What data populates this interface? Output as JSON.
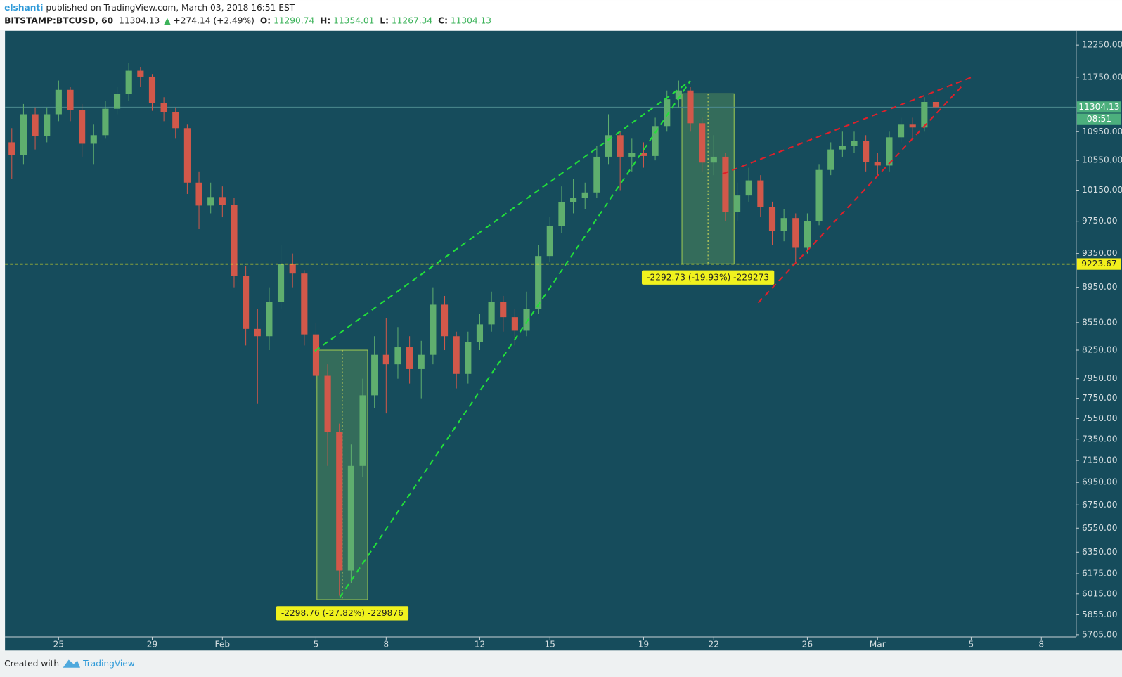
{
  "header": {
    "author": "elshanti",
    "published": "published on TradingView.com, March 03, 2018 16:51 EST",
    "symbol": "BITSTAMP:BTCUSD, 60",
    "last": "11304.13",
    "arrow": "▲",
    "change": "+274.14 (+2.49%)",
    "o_label": "O:",
    "o": "11290.74",
    "h_label": "H:",
    "h": "11354.01",
    "l_label": "L:",
    "l": "11267.34",
    "c_label": "C:",
    "c": "11304.13"
  },
  "footer": {
    "created": "Created with",
    "brand": "TradingView"
  },
  "chart_data": {
    "type": "candlestick",
    "log_scale": true,
    "up_color": "#5fae6e",
    "down_color": "#d2584a",
    "x": [
      -2,
      -1.5,
      -1,
      -0.5,
      0,
      0.5,
      1,
      1.5,
      2,
      2.5,
      3,
      3.5,
      4,
      4.5,
      5,
      5.5,
      6,
      6.5,
      7,
      7.5,
      8,
      8.5,
      9,
      9.5,
      10,
      10.5,
      11,
      11.5,
      12,
      12.5,
      13,
      13.5,
      14,
      14.5,
      15,
      15.5,
      16,
      16.5,
      17,
      17.5,
      18,
      18.5,
      19,
      19.5,
      20,
      20.5,
      21,
      21.5,
      22,
      22.5,
      23,
      23.5,
      24,
      24.5,
      25,
      25.5,
      26,
      26.5,
      27,
      27.5,
      28,
      28.5,
      29,
      29.5,
      30,
      30.5,
      31,
      31.5,
      32,
      32.5,
      33,
      33.5,
      34,
      34.5,
      35,
      35.5,
      36,
      36.5,
      37,
      37.5
    ],
    "open": [
      10800,
      10620,
      11200,
      10890,
      11200,
      11560,
      11260,
      10780,
      10900,
      11280,
      11500,
      11850,
      11760,
      11360,
      11230,
      11000,
      10250,
      9950,
      10060,
      9960,
      9080,
      8480,
      8400,
      8780,
      9220,
      9110,
      8420,
      7980,
      7420,
      6200,
      7100,
      7780,
      8200,
      8100,
      8280,
      8050,
      8200,
      8750,
      8400,
      8000,
      8340,
      8530,
      8780,
      8610,
      8460,
      8700,
      9320,
      9690,
      9990,
      10050,
      10120,
      10600,
      10900,
      10600,
      10650,
      10610,
      11030,
      11420,
      11550,
      11070,
      10520,
      10600,
      9870,
      10080,
      10280,
      9930,
      9630,
      9790,
      9420,
      9750,
      10420,
      10700,
      10750,
      10820,
      10530,
      10480,
      10870,
      11050,
      11010,
      11380
    ],
    "high": [
      11000,
      11350,
      11300,
      11300,
      11700,
      11600,
      11350,
      11050,
      11400,
      11600,
      11970,
      11900,
      11800,
      11450,
      11300,
      11050,
      10400,
      10250,
      10200,
      10050,
      9200,
      8700,
      8950,
      9450,
      9350,
      9150,
      8550,
      8100,
      7500,
      7300,
      7950,
      8400,
      8600,
      8500,
      8400,
      8350,
      8950,
      8850,
      8450,
      8450,
      8650,
      8900,
      8850,
      8700,
      8900,
      9450,
      9800,
      10200,
      10300,
      10250,
      10750,
      11200,
      10950,
      10850,
      10800,
      11150,
      11550,
      11700,
      11600,
      11150,
      10900,
      10650,
      10250,
      10450,
      10350,
      10000,
      9900,
      9850,
      9850,
      10500,
      10800,
      10950,
      10950,
      10900,
      10650,
      10950,
      11150,
      11150,
      11450,
      11460
    ],
    "low": [
      10300,
      10500,
      10700,
      10800,
      11100,
      11100,
      10600,
      10500,
      10850,
      11200,
      11400,
      11600,
      11250,
      11100,
      10850,
      10100,
      9650,
      9850,
      9800,
      8950,
      8300,
      7700,
      8250,
      8700,
      8950,
      8300,
      7850,
      7100,
      6000,
      6100,
      7000,
      7650,
      7600,
      7950,
      7900,
      7750,
      8100,
      8250,
      7850,
      7900,
      8250,
      8450,
      8450,
      8300,
      8400,
      8650,
      9250,
      9600,
      9850,
      9900,
      10050,
      10500,
      10150,
      10400,
      10450,
      10550,
      10950,
      11300,
      10950,
      10400,
      10350,
      9750,
      9750,
      10000,
      9800,
      9450,
      9500,
      9250,
      9350,
      9700,
      10350,
      10600,
      10650,
      10400,
      10350,
      10400,
      10800,
      10850,
      10950,
      11250
    ],
    "close": [
      10620,
      11200,
      10890,
      11200,
      11560,
      11260,
      10780,
      10900,
      11280,
      11500,
      11850,
      11760,
      11360,
      11230,
      11000,
      10250,
      9950,
      10060,
      9960,
      9080,
      8480,
      8400,
      8780,
      9220,
      9110,
      8420,
      7980,
      7420,
      6200,
      7100,
      7780,
      8200,
      8100,
      8280,
      8050,
      8200,
      8750,
      8400,
      8000,
      8340,
      8530,
      8780,
      8610,
      8460,
      8700,
      9320,
      9690,
      9990,
      10050,
      10120,
      10600,
      10900,
      10600,
      10650,
      10610,
      11030,
      11420,
      11550,
      11070,
      10520,
      10600,
      9870,
      10080,
      10280,
      9930,
      9630,
      9790,
      9420,
      9750,
      10420,
      10700,
      10750,
      10820,
      10530,
      10480,
      10870,
      11050,
      11010,
      11380,
      11304
    ],
    "xlim": [
      -2.29,
      43.49
    ],
    "ylim": [
      5689,
      12479
    ],
    "xticks": [
      {
        "value": 0,
        "label": "25"
      },
      {
        "value": 4,
        "label": "29"
      },
      {
        "value": 7,
        "label": "Feb"
      },
      {
        "value": 11,
        "label": "5"
      },
      {
        "value": 14,
        "label": "8"
      },
      {
        "value": 18,
        "label": "12"
      },
      {
        "value": 21,
        "label": "15"
      },
      {
        "value": 25,
        "label": "19"
      },
      {
        "value": 28,
        "label": "22"
      },
      {
        "value": 32,
        "label": "26"
      },
      {
        "value": 35,
        "label": "Mar"
      },
      {
        "value": 39,
        "label": "5"
      },
      {
        "value": 42,
        "label": "8"
      }
    ],
    "yticks": [
      {
        "value": 12250,
        "label": "12250.00"
      },
      {
        "value": 11750,
        "label": "11750.00"
      },
      {
        "value": 10950,
        "label": "10950.00"
      },
      {
        "value": 10550,
        "label": "10550.00"
      },
      {
        "value": 10150,
        "label": "10150.00"
      },
      {
        "value": 9750,
        "label": "9750.00"
      },
      {
        "value": 9350,
        "label": "9350.00"
      },
      {
        "value": 8950,
        "label": "8950.00"
      },
      {
        "value": 8550,
        "label": "8550.00"
      },
      {
        "value": 8250,
        "label": "8250.00"
      },
      {
        "value": 7950,
        "label": "7950.00"
      },
      {
        "value": 7750,
        "label": "7750.00"
      },
      {
        "value": 7550,
        "label": "7550.00"
      },
      {
        "value": 7350,
        "label": "7350.00"
      },
      {
        "value": 7150,
        "label": "7150.00"
      },
      {
        "value": 6950,
        "label": "6950.00"
      },
      {
        "value": 6750,
        "label": "6750.00"
      },
      {
        "value": 6550,
        "label": "6550.00"
      },
      {
        "value": 6350,
        "label": "6350.00"
      },
      {
        "value": 6175,
        "label": "6175.00"
      },
      {
        "value": 6015,
        "label": "6015.00"
      },
      {
        "value": 5855,
        "label": "5855.00"
      },
      {
        "value": 5705,
        "label": "5705.00"
      }
    ],
    "last_price": 11304.13,
    "countdown": "08:51",
    "horizontal_line": 9223.67,
    "trendlines": [
      {
        "color": "#22e03a",
        "x": [
          10.95,
          27.0
        ],
        "y": [
          8240,
          11695
        ]
      },
      {
        "color": "#22e03a",
        "x": [
          12.02,
          27.0
        ],
        "y": [
          5989,
          11695
        ]
      },
      {
        "color": "#e0202a",
        "x": [
          28.38,
          39.02
        ],
        "y": [
          10367,
          11750
        ]
      },
      {
        "color": "#e0202a",
        "x": [
          29.9,
          38.62
        ],
        "y": [
          8772,
          11620
        ]
      }
    ],
    "ranges": [
      {
        "x": [
          11.04,
          13.21
        ],
        "y": [
          8250,
          5970
        ],
        "label": "-2298.76 (-27.82%) -229876"
      },
      {
        "x": [
          26.64,
          28.87
        ],
        "y": [
          11502,
          9225
        ],
        "label": "-2292.73 (-19.93%) -229273"
      }
    ]
  }
}
